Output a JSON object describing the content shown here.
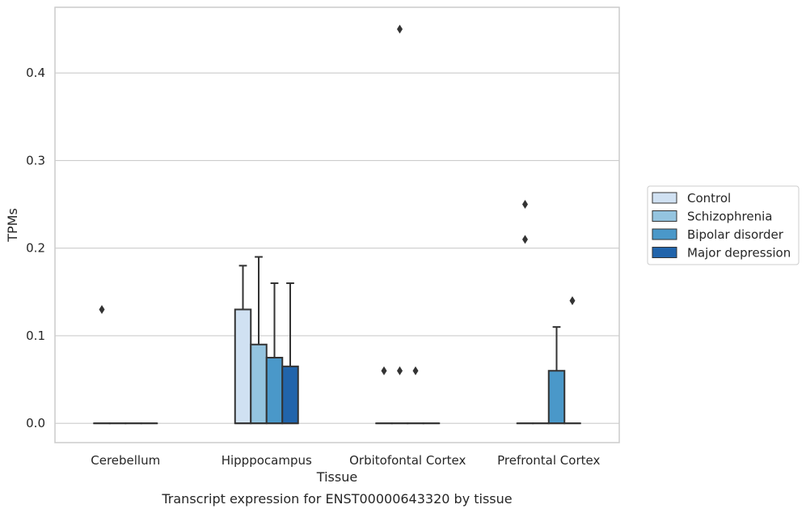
{
  "chart_data": {
    "type": "box",
    "title": "",
    "caption": "Transcript expression for ENST00000643320 by tissue",
    "xlabel": "Tissue",
    "ylabel": "TPMs",
    "ylim": [
      -0.022,
      0.475
    ],
    "yticks": [
      "0.0",
      "0.1",
      "0.2",
      "0.3",
      "0.4"
    ],
    "ytick_values": [
      0.0,
      0.1,
      0.2,
      0.3,
      0.4
    ],
    "grid": "horizontal",
    "legend_position": "right",
    "categories": [
      "Cerebellum",
      "Hipppocampus",
      "Orbitofontal Cortex",
      "Prefrontal Cortex"
    ],
    "series": [
      {
        "name": "Control",
        "color": "#d0e1f2",
        "boxes": [
          {
            "q1": 0,
            "median": 0,
            "q3": 0,
            "whisker_low": 0,
            "whisker_high": 0,
            "outliers": [
              0.13
            ]
          },
          {
            "q1": 0,
            "median": 0,
            "q3": 0.13,
            "whisker_low": 0,
            "whisker_high": 0.18,
            "outliers": []
          },
          {
            "q1": 0,
            "median": 0,
            "q3": 0,
            "whisker_low": 0,
            "whisker_high": 0,
            "outliers": [
              0.06
            ]
          },
          {
            "q1": 0,
            "median": 0,
            "q3": 0,
            "whisker_low": 0,
            "whisker_high": 0,
            "outliers": [
              0.25,
              0.21
            ]
          }
        ]
      },
      {
        "name": "Schizophrenia",
        "color": "#94c4df",
        "boxes": [
          {
            "q1": 0,
            "median": 0,
            "q3": 0,
            "whisker_low": 0,
            "whisker_high": 0,
            "outliers": []
          },
          {
            "q1": 0,
            "median": 0,
            "q3": 0.09,
            "whisker_low": 0,
            "whisker_high": 0.19,
            "outliers": []
          },
          {
            "q1": 0,
            "median": 0,
            "q3": 0,
            "whisker_low": 0,
            "whisker_high": 0,
            "outliers": [
              0.45,
              0.06
            ]
          },
          {
            "q1": 0,
            "median": 0,
            "q3": 0,
            "whisker_low": 0,
            "whisker_high": 0,
            "outliers": []
          }
        ]
      },
      {
        "name": "Bipolar disorder",
        "color": "#4a98c9",
        "boxes": [
          {
            "q1": 0,
            "median": 0,
            "q3": 0,
            "whisker_low": 0,
            "whisker_high": 0,
            "outliers": []
          },
          {
            "q1": 0,
            "median": 0,
            "q3": 0.075,
            "whisker_low": 0,
            "whisker_high": 0.16,
            "outliers": []
          },
          {
            "q1": 0,
            "median": 0,
            "q3": 0,
            "whisker_low": 0,
            "whisker_high": 0,
            "outliers": [
              0.06
            ]
          },
          {
            "q1": 0,
            "median": 0,
            "q3": 0.06,
            "whisker_low": 0,
            "whisker_high": 0.11,
            "outliers": []
          }
        ]
      },
      {
        "name": "Major depression",
        "color": "#2164ab",
        "boxes": [
          {
            "q1": 0,
            "median": 0,
            "q3": 0,
            "whisker_low": 0,
            "whisker_high": 0,
            "outliers": []
          },
          {
            "q1": 0,
            "median": 0,
            "q3": 0.065,
            "whisker_low": 0,
            "whisker_high": 0.16,
            "outliers": []
          },
          {
            "q1": 0,
            "median": 0,
            "q3": 0,
            "whisker_low": 0,
            "whisker_high": 0,
            "outliers": []
          },
          {
            "q1": 0,
            "median": 0,
            "q3": 0,
            "whisker_low": 0,
            "whisker_high": 0,
            "outliers": [
              0.14
            ]
          }
        ]
      }
    ],
    "colors": {
      "grid": "#cccccc",
      "frame": "#cccccc",
      "stroke": "#333333"
    }
  }
}
